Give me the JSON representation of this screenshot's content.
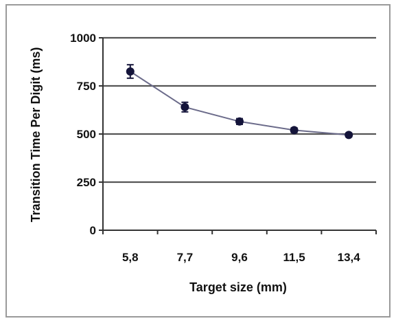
{
  "chart_data": {
    "type": "line",
    "title": "",
    "xlabel": "Target size (mm)",
    "ylabel": "Transition Time Per Digit (ms)",
    "categories": [
      "5,8",
      "7,7",
      "9,6",
      "11,5",
      "13,4"
    ],
    "series": [
      {
        "values": [
          825,
          640,
          565,
          520,
          495
        ],
        "error": [
          35,
          25,
          15,
          12,
          10
        ]
      }
    ],
    "ylim": [
      0,
      1000
    ],
    "yticks": [
      "0",
      "250",
      "500",
      "750",
      "1000"
    ],
    "grid": true,
    "legend": "none",
    "colors": {
      "line": "#6b6b8a",
      "marker": "#14143a",
      "gridline": "#555555",
      "axis": "#333333",
      "frame": "#9a9a9a"
    }
  }
}
